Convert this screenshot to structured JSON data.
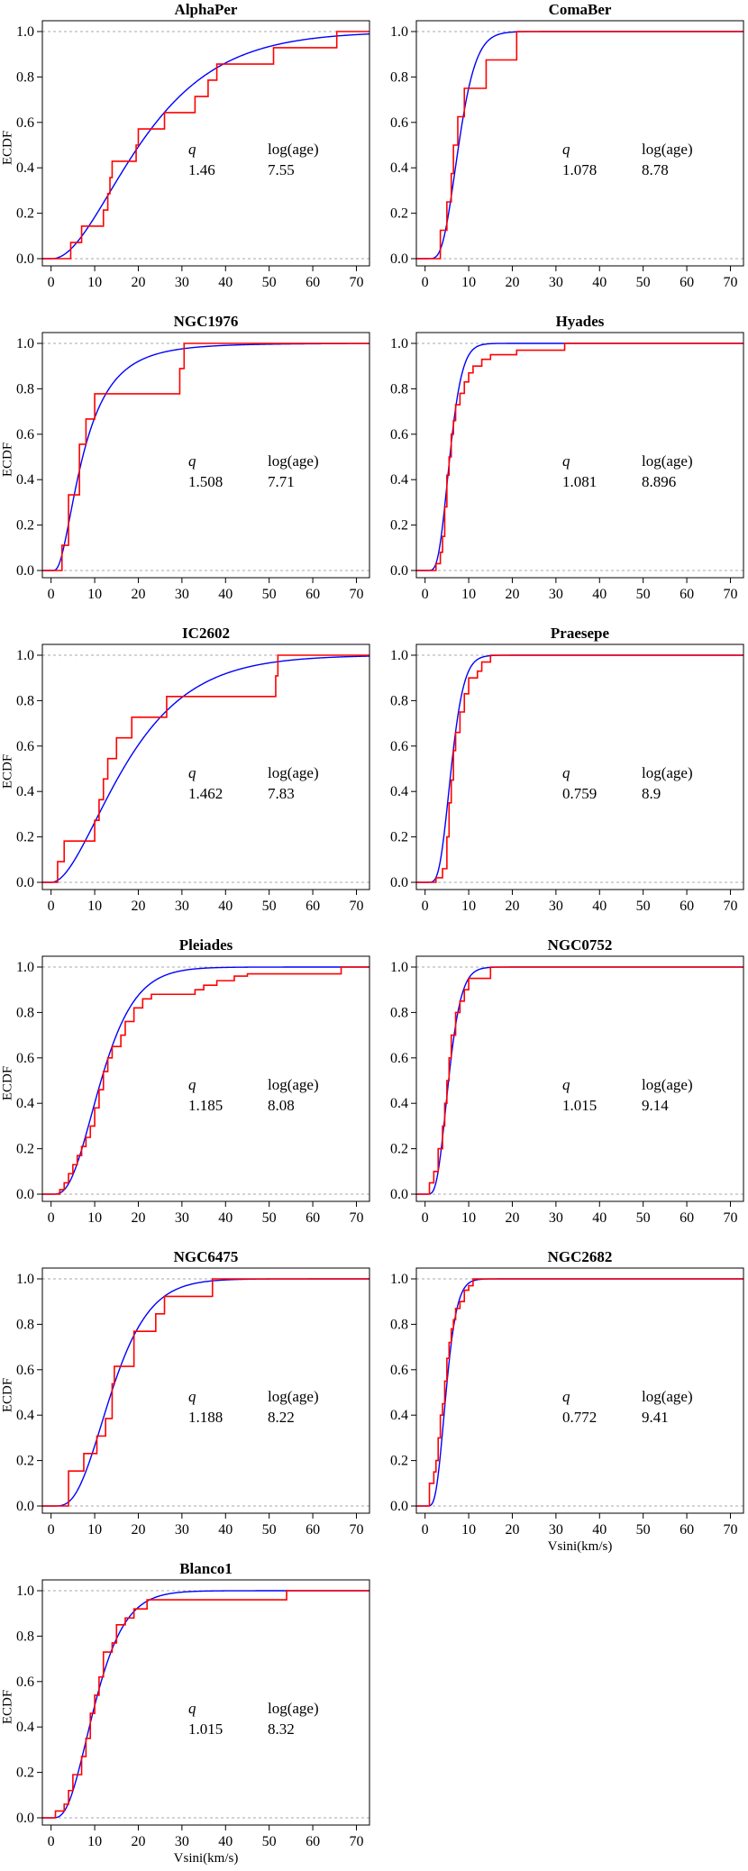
{
  "figure": {
    "ylabel": "ECDF",
    "xlabel": "Vsini(km/s)",
    "q_label": "q",
    "age_label": "log(age)",
    "xticks": [
      "0",
      "10",
      "20",
      "30",
      "40",
      "50",
      "60",
      "70"
    ],
    "yticks": [
      "0.0",
      "0.2",
      "0.4",
      "0.6",
      "0.8",
      "1.0"
    ]
  },
  "colors": {
    "ecdf": "#ff0000",
    "fit": "#0000ff",
    "reference": "#aaaaaa"
  },
  "chart_data": [
    {
      "type": "line",
      "title": "AlphaPer",
      "q": "1.46",
      "log_age": "7.55",
      "xlim": [
        -2,
        73
      ],
      "ylim": [
        0,
        1
      ],
      "ecdf_steps": [
        [
          4.5,
          0.071
        ],
        [
          7,
          0.143
        ],
        [
          12,
          0.214
        ],
        [
          13,
          0.286
        ],
        [
          13.5,
          0.357
        ],
        [
          14,
          0.429
        ],
        [
          19.5,
          0.5
        ],
        [
          20,
          0.571
        ],
        [
          26,
          0.643
        ],
        [
          33,
          0.714
        ],
        [
          36,
          0.786
        ],
        [
          38,
          0.857
        ],
        [
          51,
          0.929
        ],
        [
          65.5,
          1.0
        ]
      ],
      "ecdf_end": 73,
      "fit": {
        "model": "gamma",
        "k": 2.29,
        "theta": 10.3
      },
      "show_xlabel": false
    },
    {
      "type": "line",
      "title": "ComaBer",
      "q": "1.078",
      "log_age": "8.78",
      "xlim": [
        -2,
        73
      ],
      "ylim": [
        0,
        1
      ],
      "ecdf_steps": [
        [
          3.5,
          0.125
        ],
        [
          5,
          0.25
        ],
        [
          6,
          0.375
        ],
        [
          6.5,
          0.5
        ],
        [
          7.5,
          0.625
        ],
        [
          9,
          0.75
        ],
        [
          14,
          0.875
        ],
        [
          21,
          1.0
        ]
      ],
      "ecdf_end": 73,
      "fit": {
        "model": "gamma",
        "k": 6.5,
        "theta": 1.25
      },
      "show_xlabel": false
    },
    {
      "type": "line",
      "title": "NGC1976",
      "q": "1.508",
      "log_age": "7.71",
      "xlim": [
        -2,
        73
      ],
      "ylim": [
        0,
        1
      ],
      "ecdf_steps": [
        [
          2.5,
          0.111
        ],
        [
          4,
          0.333
        ],
        [
          6.5,
          0.556
        ],
        [
          8,
          0.667
        ],
        [
          10,
          0.778
        ],
        [
          29.5,
          0.889
        ],
        [
          30.5,
          1.0
        ]
      ],
      "ecdf_end": 73,
      "fit": {
        "model": "lognormal",
        "mu": 1.98,
        "sigma": 0.72
      },
      "show_xlabel": false
    },
    {
      "type": "line",
      "title": "Hyades",
      "q": "1.081",
      "log_age": "8.896",
      "xlim": [
        -2,
        73
      ],
      "ylim": [
        0,
        1
      ],
      "ecdf_steps": [
        [
          2.5,
          0.03
        ],
        [
          3.5,
          0.08
        ],
        [
          4,
          0.15
        ],
        [
          4.5,
          0.28
        ],
        [
          5,
          0.42
        ],
        [
          5.5,
          0.5
        ],
        [
          6,
          0.6
        ],
        [
          6.5,
          0.66
        ],
        [
          7,
          0.73
        ],
        [
          8,
          0.78
        ],
        [
          9,
          0.83
        ],
        [
          10,
          0.87
        ],
        [
          11,
          0.9
        ],
        [
          13,
          0.93
        ],
        [
          15,
          0.95
        ],
        [
          21,
          0.97
        ],
        [
          32,
          1.0
        ]
      ],
      "ecdf_end": 73,
      "fit": {
        "model": "gamma",
        "k": 7.0,
        "theta": 0.85
      },
      "show_xlabel": false
    },
    {
      "type": "line",
      "title": "IC2602",
      "q": "1.462",
      "log_age": "7.83",
      "xlim": [
        -2,
        73
      ],
      "ylim": [
        0,
        1
      ],
      "ecdf_steps": [
        [
          1.5,
          0.091
        ],
        [
          3,
          0.182
        ],
        [
          10,
          0.273
        ],
        [
          11,
          0.364
        ],
        [
          12,
          0.455
        ],
        [
          13,
          0.545
        ],
        [
          15,
          0.636
        ],
        [
          18.5,
          0.727
        ],
        [
          26.5,
          0.818
        ],
        [
          51.5,
          0.909
        ],
        [
          52,
          1.0
        ]
      ],
      "ecdf_end": 73,
      "fit": {
        "model": "gamma",
        "k": 2.1,
        "theta": 9.3
      },
      "show_xlabel": false
    },
    {
      "type": "line",
      "title": "Praesepe",
      "q": "0.759",
      "log_age": "8.9",
      "xlim": [
        -2,
        73
      ],
      "ylim": [
        0,
        1
      ],
      "ecdf_steps": [
        [
          2.5,
          0.02
        ],
        [
          4,
          0.06
        ],
        [
          5,
          0.2
        ],
        [
          5.5,
          0.35
        ],
        [
          6,
          0.45
        ],
        [
          6.5,
          0.58
        ],
        [
          7,
          0.66
        ],
        [
          8,
          0.75
        ],
        [
          9,
          0.83
        ],
        [
          10,
          0.9
        ],
        [
          12,
          0.93
        ],
        [
          13,
          0.97
        ],
        [
          15,
          1.0
        ]
      ],
      "ecdf_end": 73,
      "fit": {
        "model": "gamma",
        "k": 7.3,
        "theta": 0.86
      },
      "show_xlabel": false
    },
    {
      "type": "line",
      "title": "Pleiades",
      "q": "1.185",
      "log_age": "8.08",
      "xlim": [
        -2,
        73
      ],
      "ylim": [
        0,
        1
      ],
      "ecdf_steps": [
        [
          2,
          0.02
        ],
        [
          3,
          0.05
        ],
        [
          4,
          0.09
        ],
        [
          5,
          0.13
        ],
        [
          6,
          0.17
        ],
        [
          7,
          0.21
        ],
        [
          8,
          0.25
        ],
        [
          9,
          0.3
        ],
        [
          10,
          0.38
        ],
        [
          11,
          0.46
        ],
        [
          12,
          0.54
        ],
        [
          13,
          0.6
        ],
        [
          14,
          0.65
        ],
        [
          16,
          0.7
        ],
        [
          17,
          0.76
        ],
        [
          19,
          0.82
        ],
        [
          21,
          0.86
        ],
        [
          23,
          0.88
        ],
        [
          33,
          0.9
        ],
        [
          35,
          0.92
        ],
        [
          38,
          0.94
        ],
        [
          42,
          0.96
        ],
        [
          45,
          0.97
        ],
        [
          66.5,
          1.0
        ]
      ],
      "ecdf_end": 73,
      "fit": {
        "model": "gamma",
        "k": 3.8,
        "theta": 3.3
      },
      "show_xlabel": false
    },
    {
      "type": "line",
      "title": "NGC0752",
      "q": "1.015",
      "log_age": "9.14",
      "xlim": [
        -2,
        73
      ],
      "ylim": [
        0,
        1
      ],
      "ecdf_steps": [
        [
          1,
          0.05
        ],
        [
          2,
          0.1
        ],
        [
          3,
          0.2
        ],
        [
          4,
          0.3
        ],
        [
          4.5,
          0.4
        ],
        [
          5,
          0.5
        ],
        [
          5.5,
          0.6
        ],
        [
          6,
          0.7
        ],
        [
          7,
          0.8
        ],
        [
          8,
          0.85
        ],
        [
          9,
          0.9
        ],
        [
          10,
          0.95
        ],
        [
          15,
          1.0
        ]
      ],
      "ecdf_end": 73,
      "fit": {
        "model": "gamma",
        "k": 6.0,
        "theta": 0.95
      },
      "show_xlabel": false
    },
    {
      "type": "line",
      "title": "NGC6475",
      "q": "1.188",
      "log_age": "8.22",
      "xlim": [
        -2,
        73
      ],
      "ylim": [
        0,
        1
      ],
      "ecdf_steps": [
        [
          4,
          0.154
        ],
        [
          7.5,
          0.231
        ],
        [
          10.5,
          0.308
        ],
        [
          12.5,
          0.385
        ],
        [
          14,
          0.538
        ],
        [
          14.5,
          0.615
        ],
        [
          19,
          0.769
        ],
        [
          24,
          0.846
        ],
        [
          26,
          0.923
        ],
        [
          37,
          1.0
        ]
      ],
      "ecdf_end": 73,
      "fit": {
        "model": "gamma",
        "k": 4.4,
        "theta": 3.4
      },
      "show_xlabel": false
    },
    {
      "type": "line",
      "title": "NGC2682",
      "q": "0.772",
      "log_age": "9.41",
      "xlim": [
        -2,
        73
      ],
      "ylim": [
        0,
        1
      ],
      "ecdf_steps": [
        [
          1,
          0.1
        ],
        [
          2,
          0.15
        ],
        [
          2.5,
          0.2
        ],
        [
          3,
          0.3
        ],
        [
          3.5,
          0.4
        ],
        [
          4,
          0.45
        ],
        [
          4.5,
          0.55
        ],
        [
          5,
          0.65
        ],
        [
          5.5,
          0.72
        ],
        [
          6,
          0.78
        ],
        [
          6.5,
          0.82
        ],
        [
          7,
          0.87
        ],
        [
          8,
          0.9
        ],
        [
          9,
          0.95
        ],
        [
          10,
          0.97
        ],
        [
          11,
          1.0
        ]
      ],
      "ecdf_end": 73,
      "fit": {
        "model": "gamma",
        "k": 6.5,
        "theta": 0.78
      },
      "show_xlabel": true
    },
    {
      "type": "line",
      "title": "Blanco1",
      "q": "1.015",
      "log_age": "8.32",
      "xlim": [
        -2,
        73
      ],
      "ylim": [
        0,
        1
      ],
      "ecdf_steps": [
        [
          1,
          0.03
        ],
        [
          3,
          0.06
        ],
        [
          4,
          0.12
        ],
        [
          5,
          0.19
        ],
        [
          7,
          0.27
        ],
        [
          8,
          0.35
        ],
        [
          9,
          0.46
        ],
        [
          10,
          0.54
        ],
        [
          11,
          0.62
        ],
        [
          12,
          0.73
        ],
        [
          14,
          0.77
        ],
        [
          15,
          0.85
        ],
        [
          17,
          0.88
        ],
        [
          19,
          0.92
        ],
        [
          22,
          0.96
        ],
        [
          54,
          1.0
        ]
      ],
      "ecdf_end": 73,
      "fit": {
        "model": "gamma",
        "k": 3.8,
        "theta": 2.9
      },
      "show_xlabel": true
    }
  ]
}
